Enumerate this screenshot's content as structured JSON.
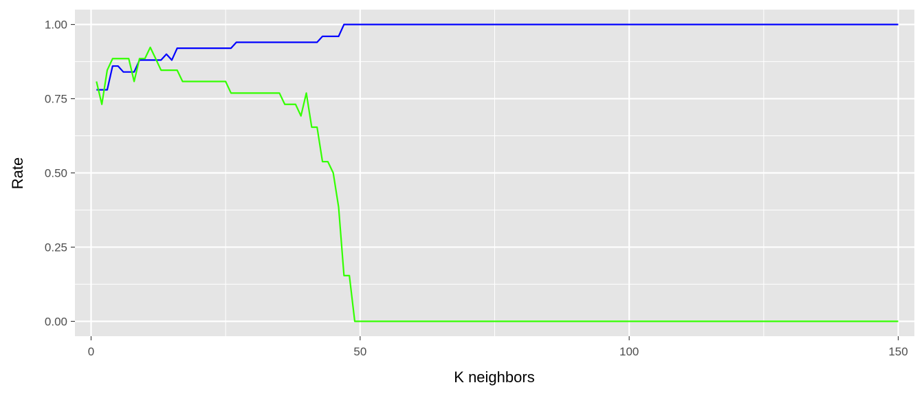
{
  "chart_data": {
    "type": "line",
    "xlabel": "K neighbors",
    "ylabel": "Rate",
    "xlim": [
      -3,
      153
    ],
    "ylim": [
      -0.05,
      1.05
    ],
    "x_ticks": [
      0,
      50,
      100,
      150
    ],
    "x_tick_labels": [
      "0",
      "50",
      "100",
      "150"
    ],
    "y_ticks": [
      0,
      0.25,
      0.5,
      0.75,
      1.0
    ],
    "y_tick_labels": [
      "0.00",
      "0.25",
      "0.50",
      "0.75",
      "1.00"
    ],
    "grid": true,
    "panel_background": "#e5e5e5",
    "grid_color": "#ffffff",
    "series": [
      {
        "color": "#0000ff",
        "points": [
          [
            1,
            0.78
          ],
          [
            2,
            0.78
          ],
          [
            3,
            0.78
          ],
          [
            4,
            0.86
          ],
          [
            5,
            0.86
          ],
          [
            6,
            0.84
          ],
          [
            7,
            0.84
          ],
          [
            8,
            0.84
          ],
          [
            9,
            0.88
          ],
          [
            10,
            0.88
          ],
          [
            11,
            0.88
          ],
          [
            12,
            0.88
          ],
          [
            13,
            0.88
          ],
          [
            14,
            0.9
          ],
          [
            15,
            0.88
          ],
          [
            16,
            0.92
          ],
          [
            17,
            0.92
          ],
          [
            18,
            0.92
          ],
          [
            19,
            0.92
          ],
          [
            20,
            0.92
          ],
          [
            21,
            0.92
          ],
          [
            22,
            0.92
          ],
          [
            23,
            0.92
          ],
          [
            24,
            0.92
          ],
          [
            25,
            0.92
          ],
          [
            26,
            0.92
          ],
          [
            27,
            0.94
          ],
          [
            28,
            0.94
          ],
          [
            29,
            0.94
          ],
          [
            30,
            0.94
          ],
          [
            31,
            0.94
          ],
          [
            32,
            0.94
          ],
          [
            33,
            0.94
          ],
          [
            34,
            0.94
          ],
          [
            35,
            0.94
          ],
          [
            36,
            0.94
          ],
          [
            37,
            0.94
          ],
          [
            38,
            0.94
          ],
          [
            39,
            0.94
          ],
          [
            40,
            0.94
          ],
          [
            41,
            0.94
          ],
          [
            42,
            0.94
          ],
          [
            43,
            0.96
          ],
          [
            44,
            0.96
          ],
          [
            45,
            0.96
          ],
          [
            46,
            0.96
          ],
          [
            47,
            1.0
          ],
          [
            48,
            1.0
          ],
          [
            49,
            1.0
          ],
          [
            50,
            1.0
          ],
          [
            150,
            1.0
          ]
        ]
      },
      {
        "color": "#33ff00",
        "points": [
          [
            1,
            0.808
          ],
          [
            2,
            0.731
          ],
          [
            3,
            0.846
          ],
          [
            4,
            0.885
          ],
          [
            5,
            0.885
          ],
          [
            6,
            0.885
          ],
          [
            7,
            0.885
          ],
          [
            8,
            0.808
          ],
          [
            9,
            0.885
          ],
          [
            10,
            0.885
          ],
          [
            11,
            0.923
          ],
          [
            12,
            0.885
          ],
          [
            13,
            0.846
          ],
          [
            14,
            0.846
          ],
          [
            15,
            0.846
          ],
          [
            16,
            0.846
          ],
          [
            17,
            0.808
          ],
          [
            18,
            0.808
          ],
          [
            19,
            0.808
          ],
          [
            20,
            0.808
          ],
          [
            21,
            0.808
          ],
          [
            22,
            0.808
          ],
          [
            23,
            0.808
          ],
          [
            24,
            0.808
          ],
          [
            25,
            0.808
          ],
          [
            26,
            0.769
          ],
          [
            27,
            0.769
          ],
          [
            28,
            0.769
          ],
          [
            29,
            0.769
          ],
          [
            30,
            0.769
          ],
          [
            31,
            0.769
          ],
          [
            32,
            0.769
          ],
          [
            33,
            0.769
          ],
          [
            34,
            0.769
          ],
          [
            35,
            0.769
          ],
          [
            36,
            0.731
          ],
          [
            37,
            0.731
          ],
          [
            38,
            0.731
          ],
          [
            39,
            0.692
          ],
          [
            40,
            0.769
          ],
          [
            41,
            0.654
          ],
          [
            42,
            0.654
          ],
          [
            43,
            0.538
          ],
          [
            44,
            0.538
          ],
          [
            45,
            0.5
          ],
          [
            46,
            0.385
          ],
          [
            47,
            0.154
          ],
          [
            48,
            0.154
          ],
          [
            49,
            0.0
          ],
          [
            50,
            0.0
          ],
          [
            150,
            0.0
          ]
        ]
      }
    ]
  }
}
